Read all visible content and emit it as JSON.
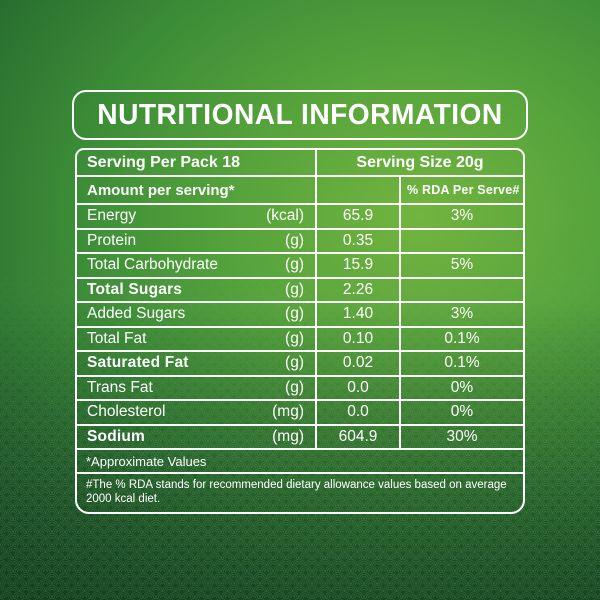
{
  "title": "NUTRITIONAL INFORMATION",
  "table": {
    "serving_per_pack": "Serving Per Pack 18",
    "serving_size": "Serving Size 20g",
    "amount_header": "Amount per serving*",
    "rda_header": "% RDA Per Serve#",
    "rows": [
      {
        "label": "Energy",
        "unit": "(kcal)",
        "value": "65.9",
        "rda": "3%",
        "bold": false
      },
      {
        "label": "Protein",
        "unit": "(g)",
        "value": "0.35",
        "rda": "",
        "bold": false
      },
      {
        "label": "Total Carbohydrate",
        "unit": "(g)",
        "value": "15.9",
        "rda": "5%",
        "bold": false
      },
      {
        "label": "Total Sugars",
        "unit": "(g)",
        "value": "2.26",
        "rda": "",
        "bold": true
      },
      {
        "label": "Added Sugars",
        "unit": "(g)",
        "value": "1.40",
        "rda": "3%",
        "bold": false
      },
      {
        "label": "Total Fat",
        "unit": "(g)",
        "value": "0.10",
        "rda": "0.1%",
        "bold": false
      },
      {
        "label": "Saturated Fat",
        "unit": "(g)",
        "value": "0.02",
        "rda": "0.1%",
        "bold": true
      },
      {
        "label": "Trans Fat",
        "unit": "(g)",
        "value": "0.0",
        "rda": "0%",
        "bold": false
      },
      {
        "label": "Cholesterol",
        "unit": "(mg)",
        "value": "0.0",
        "rda": "0%",
        "bold": false
      },
      {
        "label": "Sodium",
        "unit": "(mg)",
        "value": "604.9",
        "rda": "30%",
        "bold": true
      }
    ],
    "approx_note": "*Approximate Values",
    "rda_note": "#The % RDA stands for recommended dietary allowance values based on average 2000 kcal diet."
  },
  "colors": {
    "background_dark": "#1f5c2a",
    "background_mid": "#3b8c37",
    "background_light": "#72b43f",
    "border": "#ffffff",
    "text": "#ffffff"
  }
}
